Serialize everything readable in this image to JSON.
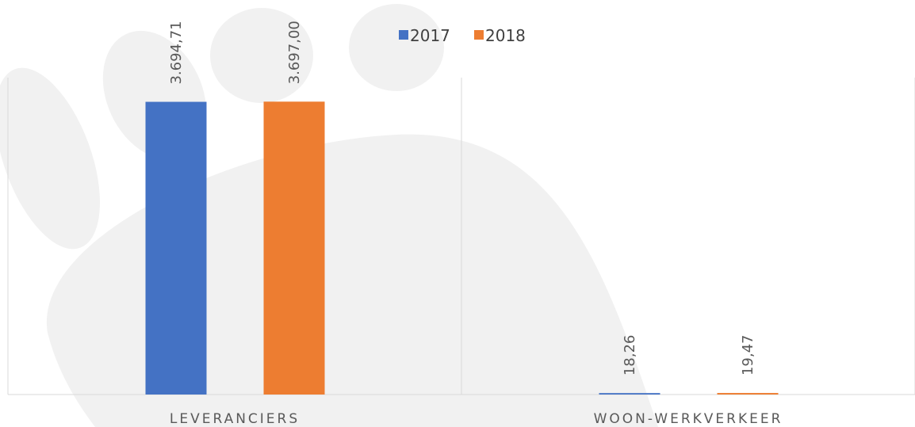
{
  "chart_data": {
    "type": "bar",
    "categories": [
      "LEVERANCIERS",
      "WOON-WERKVERKEER"
    ],
    "series": [
      {
        "name": "2017",
        "color": "#4472c4",
        "values": [
          3694.71,
          18.26
        ],
        "value_labels": [
          "3.694,71",
          "18,26"
        ]
      },
      {
        "name": "2018",
        "color": "#ed7d31",
        "values": [
          3697.0,
          19.47
        ],
        "value_labels": [
          "3.697,00",
          "19,47"
        ]
      }
    ],
    "ylim": [
      0,
      4000
    ]
  }
}
